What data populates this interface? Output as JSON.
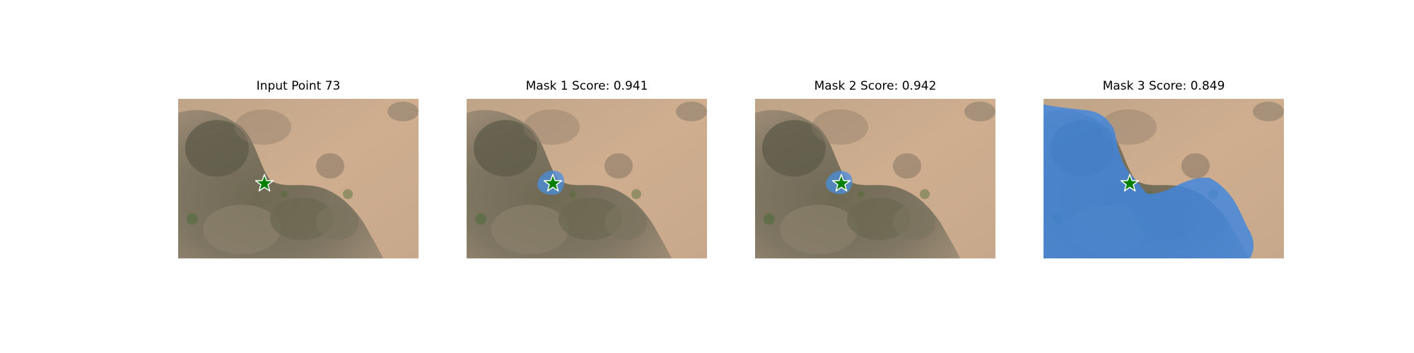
{
  "panels": [
    {
      "title": "Input Point 73",
      "mask": "none"
    },
    {
      "title": "Mask 1 Score: 0.941",
      "mask": "small-blob"
    },
    {
      "title": "Mask 2 Score: 0.942",
      "mask": "small-blob"
    },
    {
      "title": "Mask 3 Score: 0.849",
      "mask": "large-region"
    }
  ],
  "colors": {
    "background": "#ffffff",
    "ground": "#c9a88a",
    "vegetation": "#6f6a55",
    "mask": "#4a8fe0",
    "star_fill": "#008000",
    "star_edge": "#ffffff"
  }
}
